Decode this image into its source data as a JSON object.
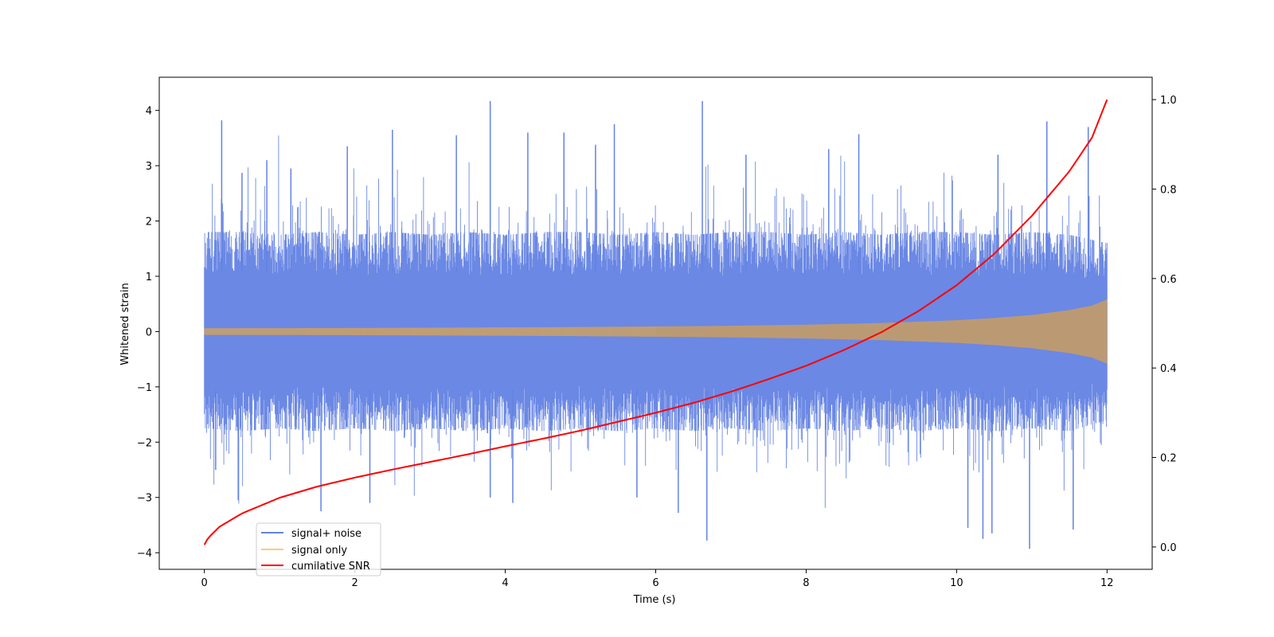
{
  "chart_data": {
    "type": "line",
    "xlabel": "Time (s)",
    "ylabel": "Whitened strain",
    "xlim": [
      -0.6,
      12.6
    ],
    "ylim": [
      -4.3,
      4.6
    ],
    "y2lim": [
      -0.05,
      1.05
    ],
    "x_ticks": [
      0,
      2,
      4,
      6,
      8,
      10,
      12
    ],
    "y_ticks": [
      -4,
      -3,
      -2,
      -1,
      0,
      1,
      2,
      3,
      4
    ],
    "y2_ticks": [
      0.0,
      0.2,
      0.4,
      0.6,
      0.8,
      1.0
    ],
    "x_tick_labels": [
      "0",
      "2",
      "4",
      "6",
      "8",
      "10",
      "12"
    ],
    "y_tick_labels": [
      "−4",
      "−3",
      "−2",
      "−1",
      "0",
      "1",
      "2",
      "3",
      "4"
    ],
    "y2_tick_labels": [
      "0.0",
      "0.2",
      "0.4",
      "0.6",
      "0.8",
      "1.0"
    ],
    "grid": false,
    "legend_position": "lower-left",
    "series": [
      {
        "name": "signal+ noise",
        "color": "#6382e3",
        "axis": "left",
        "description_of_data": "dense whitened noise around 0 with envelope",
        "x": [
          0,
          0.5,
          1,
          1.5,
          2,
          2.5,
          3,
          3.5,
          4,
          4.5,
          5,
          5.5,
          6,
          6.5,
          7,
          7.5,
          8,
          8.5,
          9,
          9.5,
          10,
          10.5,
          11,
          11.5,
          12
        ],
        "upper_envelope": [
          1.8,
          1.8,
          1.75,
          1.8,
          1.75,
          1.8,
          1.75,
          1.8,
          1.75,
          1.8,
          1.8,
          1.75,
          1.8,
          1.75,
          1.8,
          1.8,
          1.75,
          1.8,
          1.75,
          1.8,
          1.8,
          1.75,
          1.8,
          1.75,
          1.6
        ],
        "lower_envelope": [
          -1.75,
          -1.8,
          -1.75,
          -1.8,
          -1.75,
          -1.8,
          -1.75,
          -1.8,
          -1.75,
          -1.8,
          -1.75,
          -1.8,
          -1.75,
          -1.8,
          -1.75,
          -1.8,
          -1.75,
          -1.8,
          -1.75,
          -1.8,
          -1.75,
          -1.8,
          -1.75,
          -1.8,
          -1.6
        ],
        "peaks": [
          {
            "x": 0.23,
            "y": 3.82
          },
          {
            "x": 0.5,
            "y": 2.87
          },
          {
            "x": 0.83,
            "y": 3.1
          },
          {
            "x": 1.15,
            "y": 2.95
          },
          {
            "x": 1.9,
            "y": 3.35
          },
          {
            "x": 2.5,
            "y": 3.65
          },
          {
            "x": 3.35,
            "y": 3.55
          },
          {
            "x": 3.8,
            "y": 4.17
          },
          {
            "x": 4.3,
            "y": 3.6
          },
          {
            "x": 4.78,
            "y": 3.6
          },
          {
            "x": 5.2,
            "y": 3.38
          },
          {
            "x": 5.45,
            "y": 3.75
          },
          {
            "x": 6.62,
            "y": 4.17
          },
          {
            "x": 7.2,
            "y": 3.2
          },
          {
            "x": 8.3,
            "y": 3.3
          },
          {
            "x": 8.7,
            "y": 3.57
          },
          {
            "x": 10.55,
            "y": 3.2
          },
          {
            "x": 11.2,
            "y": 3.8
          },
          {
            "x": 11.75,
            "y": 3.7
          },
          {
            "x": 0.15,
            "y": -2.5
          },
          {
            "x": 0.45,
            "y": -3.05
          },
          {
            "x": 1.55,
            "y": -3.25
          },
          {
            "x": 2.2,
            "y": -3.1
          },
          {
            "x": 3.8,
            "y": -3.0
          },
          {
            "x": 4.1,
            "y": -3.1
          },
          {
            "x": 5.75,
            "y": -3.0
          },
          {
            "x": 6.3,
            "y": -3.28
          },
          {
            "x": 6.68,
            "y": -3.78
          },
          {
            "x": 10.15,
            "y": -3.55
          },
          {
            "x": 10.35,
            "y": -3.75
          },
          {
            "x": 10.47,
            "y": -3.65
          },
          {
            "x": 10.97,
            "y": -3.93
          },
          {
            "x": 11.55,
            "y": -3.58
          }
        ]
      },
      {
        "name": "signal only",
        "color": "#ffc878",
        "axis": "left",
        "x": [
          0,
          1,
          2,
          3,
          4,
          5,
          6,
          7,
          8,
          9,
          10,
          10.5,
          11,
          11.5,
          11.8,
          12
        ],
        "amplitude": [
          0.06,
          0.062,
          0.065,
          0.07,
          0.075,
          0.082,
          0.092,
          0.105,
          0.125,
          0.155,
          0.205,
          0.245,
          0.3,
          0.39,
          0.47,
          0.58
        ]
      },
      {
        "name": "cumilative SNR",
        "color": "#ff0000",
        "axis": "right",
        "x": [
          0,
          0.05,
          0.2,
          0.5,
          1,
          1.5,
          2,
          2.5,
          3,
          3.5,
          4,
          4.5,
          5,
          5.5,
          6,
          6.5,
          7,
          7.5,
          8,
          8.5,
          9,
          9.5,
          10,
          10.5,
          11,
          11.5,
          11.8,
          12
        ],
        "y": [
          0.005,
          0.02,
          0.045,
          0.075,
          0.11,
          0.135,
          0.155,
          0.173,
          0.19,
          0.207,
          0.225,
          0.242,
          0.26,
          0.28,
          0.3,
          0.322,
          0.347,
          0.375,
          0.405,
          0.44,
          0.48,
          0.528,
          0.585,
          0.655,
          0.74,
          0.84,
          0.915,
          1.0
        ]
      }
    ]
  }
}
